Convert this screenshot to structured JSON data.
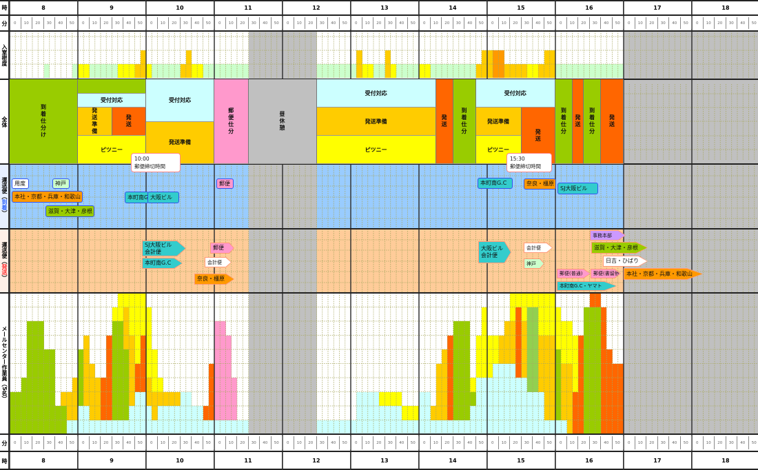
{
  "labels": {
    "hour": "時",
    "minute": "分",
    "density": "入室密度",
    "overall": "全体",
    "arrival_pre": "運送便（",
    "arrival_mid": "到着",
    "arrival_post": "）",
    "departure_pre": "運送便（",
    "departure_mid": "発送",
    "departure_post": "）",
    "staff": "メールセンター作業員（5名）"
  },
  "hours": [
    "8",
    "9",
    "10",
    "11",
    "12",
    "13",
    "14",
    "15",
    "16",
    "17",
    "18"
  ],
  "minutes": [
    "0",
    "10",
    "20",
    "30",
    "40",
    "50"
  ],
  "colors": {
    "c": "#ccffff",
    "g": "#99cc00",
    "o": "#ffcc00",
    "r": "#ff6600",
    "y": "#ffff00",
    "p": "#ff99cc",
    "l": "#92d050",
    "G": "#ccffcc",
    "Y": "#ffff00",
    "O": "#ffcc00",
    "D": "#ff9900",
    "gray": "#c0c0c0",
    "arrival_bg": "#99ccff",
    "departure_bg": "#ffcc99",
    "arrival_label": "#3366ff",
    "departure_label": "#ff3333"
  },
  "density": [
    [
      "",
      "",
      "",
      "",
      "",
      "",
      "G1",
      "",
      "",
      "",
      "",
      "G1"
    ],
    [
      "Y1",
      "Y1",
      "G1",
      "G1",
      "G1",
      "G1",
      "G1",
      "Y1",
      "Y1",
      "Y1",
      "O1",
      "O2"
    ],
    [
      "Y1",
      "G1",
      "G1",
      "G1",
      "G1",
      "G1",
      "O1",
      "O2",
      "Y1",
      "Y1",
      "G1",
      "G1"
    ],
    [
      "G1",
      "G1",
      "G1",
      "G1",
      "G1",
      "G1",
      "",
      "",
      "",
      "",
      "",
      ""
    ],
    [
      "",
      "",
      "",
      "",
      "",
      "",
      "G1",
      "G1",
      "G1",
      "G1",
      "G1",
      "G1"
    ],
    [
      "G1",
      "O2",
      "Y1",
      "Y1",
      "G1",
      "G1",
      "O2",
      "Y1",
      "G1",
      "G1",
      "G1",
      "G1"
    ],
    [
      "Y1",
      "Y1",
      "G1",
      "G1",
      "G1",
      "G1",
      "G1",
      "G1",
      "G1",
      "G1",
      "O1",
      "O2"
    ],
    [
      "O2",
      "D2",
      "D2",
      "O1",
      "O1",
      "O1",
      "O1",
      "Y1",
      "Y1",
      "O1",
      "O2",
      "O2"
    ],
    [
      "G1",
      "G1",
      "G1",
      "G1",
      "G1",
      "G1",
      "G1",
      "G1",
      "G1",
      "G1",
      "G1",
      "G1"
    ]
  ],
  "overall_blocks": [
    {
      "label": "到着仕分け",
      "color": "#99cc00"
    },
    {
      "label": "",
      "color": "#99cc00"
    },
    {
      "label": "受付対応",
      "color": "#ccffff"
    },
    {
      "label": "発送準備",
      "color": "#ffcc00"
    },
    {
      "label": "発送",
      "color": "#ff6600"
    },
    {
      "label": "ピツニー",
      "color": "#ffff00"
    },
    {
      "label": "受付対応",
      "color": "#ccffff"
    },
    {
      "label": "発送準備",
      "color": "#ffcc00"
    },
    {
      "label": "郵便仕分",
      "color": "#ff99cc"
    },
    {
      "label": "昼休憩",
      "color": "#c0c0c0"
    },
    {
      "label": "受付対応",
      "color": "#ccffff"
    },
    {
      "label": "発送準備",
      "color": "#ffcc00"
    },
    {
      "label": "ピツニー",
      "color": "#ffff00"
    },
    {
      "label": "発送",
      "color": "#ff6600"
    },
    {
      "label": "到着仕分",
      "color": "#99cc00"
    },
    {
      "label": "受付対応",
      "color": "#ccffff"
    },
    {
      "label": "発送準備",
      "color": "#ffcc00"
    },
    {
      "label": "ピツニー",
      "color": "#ffff00"
    },
    {
      "label": "発送",
      "color": "#ff6600"
    },
    {
      "label": "到着仕分",
      "color": "#99cc00"
    },
    {
      "label": "発送",
      "color": "#ff6600"
    },
    {
      "label": "到着仕分",
      "color": "#99cc00"
    },
    {
      "label": "発送",
      "color": "#ff6600"
    }
  ],
  "callouts": [
    {
      "time": "10:00",
      "text": "郵便締切時間"
    },
    {
      "time": "15:30",
      "text": "郵便締切時間"
    }
  ],
  "arrivals": [
    {
      "label": "用度",
      "color": "#ffffff"
    },
    {
      "label": "神戸",
      "color": "#ccffcc"
    },
    {
      "label": "本社・京都・兵庫・和歌山",
      "color": "#ff9900"
    },
    {
      "label": "滋賀・大津・彦根",
      "color": "#99cc00"
    },
    {
      "label": "本町南G.C",
      "color": "#33cccc"
    },
    {
      "label": "大阪ビル",
      "color": "#33cccc"
    },
    {
      "label": "郵便",
      "color": "#ff99cc"
    },
    {
      "label": "本町南G.C",
      "color": "#33cccc"
    },
    {
      "label": "奈良・橿原",
      "color": "#ff9900"
    },
    {
      "label": "SJ大阪ビル",
      "color": "#33cccc"
    }
  ],
  "departures": [
    {
      "label": "SJ大阪ビル\n会計便",
      "color": "#33cccc"
    },
    {
      "label": "本町南G.C",
      "color": "#33cccc"
    },
    {
      "label": "郵便",
      "color": "#ff99cc"
    },
    {
      "label": "会計便",
      "color": "#ffffff"
    },
    {
      "label": "奈良・橿原",
      "color": "#ff9900"
    },
    {
      "label": "大阪ビル\n会計便",
      "color": "#33cccc"
    },
    {
      "label": "会計便",
      "color": "#ffffff"
    },
    {
      "label": "神戸",
      "color": "#ccffcc"
    },
    {
      "label": "事務本部",
      "color": "#cc99ff"
    },
    {
      "label": "滋賀・大津・彦根",
      "color": "#99cc00"
    },
    {
      "label": "日吉・ひばり",
      "color": "#ffffff"
    },
    {
      "label": "郵便(普通)",
      "color": "#ff99cc"
    },
    {
      "label": "郵便(書留他)",
      "color": "#ff99cc"
    },
    {
      "label": "本社・京都・兵庫・和歌山",
      "color": "#ff9900"
    },
    {
      "label": "本町南G.C・ヤマト",
      "color": "#33cccc"
    }
  ],
  "staff": [
    [
      "g3",
      "g3",
      "g4",
      "g8",
      "g8",
      "g8",
      "g6",
      "g6",
      "g2",
      "g2o1",
      "c1o2",
      "c1o3"
    ],
    [
      "c2g4",
      "c2o5",
      "c1o4",
      "c1o3",
      "c1r3",
      "c1r6",
      "c1g7y1",
      "c1g7y2",
      "c1g5o3y1",
      "c2o5y3",
      "c3r2y5",
      "c3r4y3"
    ],
    [
      "c2o2y5",
      "c1o2y3",
      "c2o1y1",
      "c2o1",
      "c2o1",
      "c2o1",
      "c3",
      "c3",
      "c2",
      "c2",
      "c1r1",
      "c1r4"
    ],
    [
      "c1p7",
      "c1p7",
      "c1p6",
      "c1p3",
      "c1",
      "c1",
      "",
      "",
      "",
      "",
      "",
      ""
    ],
    [
      "",
      "",
      "",
      "",
      "",
      "",
      "c1",
      "c1",
      "c1",
      "c1",
      "c1",
      "c1"
    ],
    [
      "c1",
      "c3",
      "c3",
      "c3",
      "c3",
      "c2y1",
      "c2y1",
      "c2y1",
      "c2y1",
      "c1y1",
      "c1y1",
      "c1y1"
    ],
    [
      "c3",
      "c3",
      "c1o1",
      "c1o4",
      "c1o5",
      "c1r6",
      "c1g7",
      "c1g7",
      "c1g7",
      "c2g1y1",
      "c4y3",
      "c4y5"
    ],
    [
      "c4y3",
      "c5y2",
      "c5o2",
      "c5o3",
      "c5o3y2",
      "c4r5y1",
      "c4o4y2",
      "c3l6y1",
      "c3l6y1",
      "c3o4y3",
      "c1o6y3",
      "c1o6y3"
    ],
    [
      "c1g5y3",
      "c1o4y3",
      "o5y3",
      "r3y4",
      "r7",
      "g9",
      "g9r1",
      "g9r1",
      "r9",
      "r6",
      "r5",
      "r5"
    ]
  ]
}
